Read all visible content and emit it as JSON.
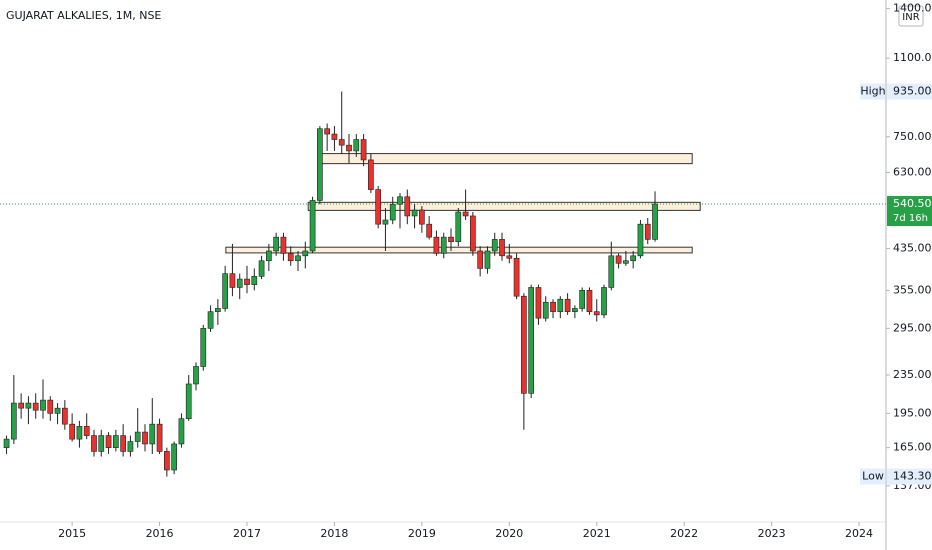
{
  "chart_data": {
    "type": "candlestick",
    "title": "GUJARAT ALKALIES, 1M, NSE",
    "currency": "INR",
    "log_scale": true,
    "grid": false,
    "up_color": "#26a146",
    "down_color": "#e8322d",
    "ylim": [
      116,
      1460
    ],
    "yticks": [
      {
        "value": 137,
        "label": "137.00"
      },
      {
        "value": 165,
        "label": "165.00"
      },
      {
        "value": 195,
        "label": "195.00"
      },
      {
        "value": 235,
        "label": "235.00"
      },
      {
        "value": 295,
        "label": "295.00"
      },
      {
        "value": 355,
        "label": "355.00"
      },
      {
        "value": 435,
        "label": "435.00"
      },
      {
        "value": 630,
        "label": "630.00"
      },
      {
        "value": 750,
        "label": "750.00"
      },
      {
        "value": 1100,
        "label": "1100.00"
      },
      {
        "value": 1400,
        "label": "1400.00"
      }
    ],
    "xlim": [
      -0.9,
      120.7
    ],
    "xticks": [
      {
        "value": 9,
        "label": "2015"
      },
      {
        "value": 21,
        "label": "2016"
      },
      {
        "value": 33,
        "label": "2017"
      },
      {
        "value": 45,
        "label": "2018"
      },
      {
        "value": 57,
        "label": "2019"
      },
      {
        "value": 69,
        "label": "2020"
      },
      {
        "value": 81,
        "label": "2021"
      },
      {
        "value": 93,
        "label": "2022"
      },
      {
        "value": 105,
        "label": "2023"
      },
      {
        "value": 117,
        "label": "2024"
      }
    ],
    "open": [
      165,
      172,
      205,
      200,
      205,
      198,
      208,
      195,
      200,
      185,
      172,
      183,
      175,
      162,
      175,
      165,
      175,
      162,
      170,
      178,
      168,
      185,
      162,
      148,
      168,
      190,
      225,
      245,
      295,
      320,
      325,
      385,
      360,
      375,
      365,
      380,
      410,
      430,
      460,
      425,
      410,
      420,
      430,
      550,
      780,
      760,
      740,
      720,
      700,
      740,
      670,
      580,
      490,
      500,
      540,
      560,
      510,
      525,
      490,
      460,
      425,
      460,
      450,
      520,
      510,
      430,
      395,
      430,
      455,
      420,
      415,
      345,
      215,
      360,
      310,
      335,
      320,
      340,
      320,
      325,
      355,
      320,
      315,
      360,
      420,
      405,
      410,
      420,
      490,
      455
    ],
    "high": [
      175,
      235,
      215,
      212,
      215,
      230,
      212,
      205,
      208,
      195,
      188,
      195,
      180,
      180,
      178,
      180,
      185,
      175,
      200,
      185,
      210,
      190,
      165,
      170,
      195,
      235,
      250,
      300,
      330,
      340,
      400,
      445,
      385,
      400,
      395,
      420,
      445,
      470,
      470,
      440,
      430,
      450,
      560,
      790,
      800,
      790,
      935,
      760,
      760,
      760,
      690,
      590,
      530,
      560,
      570,
      580,
      540,
      535,
      510,
      475,
      470,
      480,
      530,
      580,
      520,
      440,
      440,
      470,
      470,
      445,
      425,
      350,
      365,
      365,
      345,
      340,
      345,
      350,
      330,
      360,
      360,
      340,
      365,
      450,
      425,
      430,
      430,
      500,
      505,
      575
    ],
    "low": [
      160,
      168,
      190,
      185,
      190,
      190,
      188,
      185,
      180,
      170,
      165,
      172,
      158,
      158,
      160,
      162,
      158,
      158,
      165,
      162,
      160,
      160,
      143.3,
      145,
      165,
      188,
      218,
      240,
      290,
      300,
      320,
      345,
      340,
      350,
      355,
      375,
      390,
      420,
      410,
      400,
      390,
      395,
      425,
      540,
      700,
      700,
      690,
      660,
      680,
      650,
      570,
      480,
      430,
      490,
      480,
      490,
      480,
      470,
      455,
      420,
      415,
      430,
      440,
      500,
      420,
      380,
      385,
      420,
      410,
      405,
      340,
      180,
      210,
      300,
      305,
      310,
      310,
      315,
      310,
      320,
      315,
      305,
      310,
      355,
      395,
      400,
      395,
      415,
      445,
      450
    ],
    "close": [
      172,
      205,
      200,
      205,
      198,
      208,
      195,
      200,
      185,
      172,
      183,
      175,
      162,
      175,
      165,
      175,
      162,
      170,
      178,
      168,
      185,
      162,
      148,
      168,
      190,
      225,
      245,
      295,
      320,
      325,
      385,
      360,
      375,
      365,
      380,
      410,
      430,
      460,
      425,
      410,
      420,
      430,
      550,
      780,
      760,
      740,
      720,
      700,
      740,
      670,
      580,
      490,
      500,
      540,
      560,
      510,
      525,
      490,
      460,
      425,
      460,
      450,
      520,
      510,
      430,
      395,
      430,
      455,
      420,
      415,
      345,
      215,
      360,
      310,
      335,
      320,
      340,
      320,
      325,
      355,
      320,
      315,
      360,
      420,
      405,
      410,
      420,
      490,
      455,
      540.5
    ],
    "zones": [
      {
        "start": 43.0,
        "end": 94.1,
        "top": 691,
        "bottom": 658
      },
      {
        "start": 41.4,
        "end": 95.2,
        "top": 545,
        "bottom": 524
      },
      {
        "start": 30.1,
        "end": 94.1,
        "top": 438,
        "bottom": 426
      }
    ],
    "zone_color": "#fdefdc",
    "high_marker": {
      "title": "High",
      "price": {
        "value": 935,
        "label": "935.00"
      }
    },
    "low_marker": {
      "title": "Low",
      "price": {
        "value": 143.3,
        "label": "143.30"
      }
    },
    "last_price": {
      "value": 540.5,
      "label": "540.50"
    },
    "countdown": "7d 16h",
    "last_color": "#26a146"
  }
}
